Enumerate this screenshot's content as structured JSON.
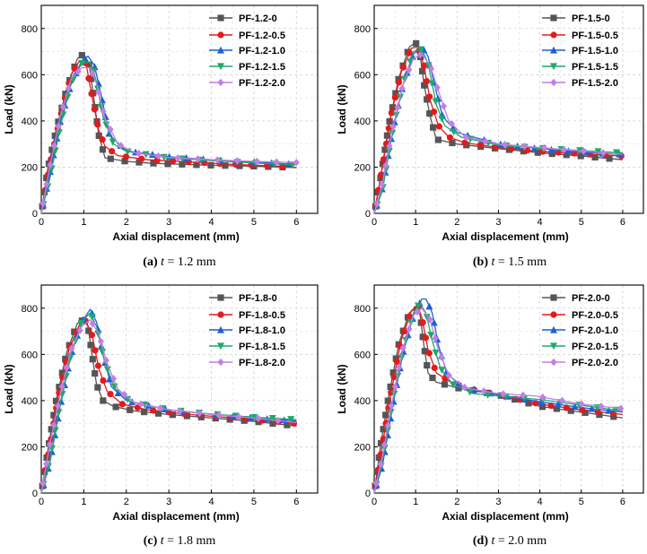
{
  "colors": {
    "series": [
      "#555555",
      "#e41a1c",
      "#1f5fd6",
      "#1ea86a",
      "#c27fe6"
    ],
    "markers": [
      "square",
      "circle",
      "triangle-up",
      "triangle-down",
      "diamond"
    ]
  },
  "chart_data": [
    {
      "type": "line",
      "caption_prefix": "(a)",
      "caption_rest": " = 1.2 mm",
      "caption_var": "t",
      "xlabel": "Axial displacement (mm)",
      "ylabel": "Load (kN)",
      "xlim": [
        0,
        6.5
      ],
      "ylim": [
        0,
        900
      ],
      "xticks": [
        0,
        1,
        2,
        3,
        4,
        5,
        6
      ],
      "yticks": [
        0,
        200,
        400,
        600,
        800
      ],
      "grid": "dashed",
      "legend": "top-right",
      "series": [
        {
          "name": "PF-1.2-0",
          "x": [
            0,
            0.15,
            0.35,
            0.6,
            0.85,
            1.0,
            1.12,
            1.25,
            1.35,
            1.5,
            2.0,
            2.5,
            3.0,
            4.0,
            5.0,
            6.0
          ],
          "y": [
            0,
            190,
            360,
            540,
            670,
            690,
            650,
            480,
            340,
            240,
            225,
            218,
            214,
            208,
            204,
            198
          ]
        },
        {
          "name": "PF-1.2-0.5",
          "x": [
            0,
            0.2,
            0.45,
            0.7,
            0.9,
            1.05,
            1.2,
            1.35,
            1.5,
            1.8,
            2.5,
            3.5,
            4.5,
            5.5,
            6.0
          ],
          "y": [
            0,
            210,
            420,
            600,
            660,
            650,
            500,
            360,
            290,
            250,
            232,
            222,
            212,
            205,
            198
          ]
        },
        {
          "name": "PF-1.2-1.0",
          "x": [
            0,
            0.2,
            0.45,
            0.7,
            0.95,
            1.1,
            1.25,
            1.4,
            1.6,
            2.0,
            3.0,
            4.0,
            5.0,
            6.0
          ],
          "y": [
            0,
            170,
            400,
            560,
            660,
            680,
            640,
            520,
            340,
            270,
            245,
            232,
            222,
            212
          ]
        },
        {
          "name": "PF-1.2-1.5",
          "x": [
            0,
            0.2,
            0.45,
            0.7,
            0.95,
            1.15,
            1.3,
            1.45,
            1.7,
            2.0,
            3.0,
            4.0,
            5.0,
            6.0
          ],
          "y": [
            0,
            150,
            380,
            560,
            650,
            655,
            570,
            420,
            300,
            268,
            240,
            228,
            218,
            210
          ]
        },
        {
          "name": "PF-1.2-2.0",
          "x": [
            0,
            0.2,
            0.45,
            0.7,
            0.95,
            1.15,
            1.3,
            1.5,
            1.8,
            2.2,
            3.0,
            4.0,
            5.0,
            6.0
          ],
          "y": [
            0,
            200,
            420,
            580,
            630,
            630,
            560,
            410,
            300,
            262,
            242,
            232,
            225,
            220
          ]
        }
      ]
    },
    {
      "type": "line",
      "caption_prefix": "(b)",
      "caption_rest": " = 1.5 mm",
      "caption_var": "t",
      "xlabel": "Axial displacement (mm)",
      "ylabel": "Load (kN)",
      "xlim": [
        0,
        6.5
      ],
      "ylim": [
        0,
        900
      ],
      "xticks": [
        0,
        1,
        2,
        3,
        4,
        5,
        6
      ],
      "yticks": [
        0,
        200,
        400,
        600,
        800
      ],
      "grid": "dashed",
      "legend": "top-right",
      "series": [
        {
          "name": "PF-1.5-0",
          "x": [
            0,
            0.15,
            0.35,
            0.6,
            0.85,
            1.0,
            1.1,
            1.2,
            1.35,
            1.5,
            2.0,
            3.0,
            4.0,
            5.0,
            6.0
          ],
          "y": [
            0,
            150,
            380,
            590,
            720,
            740,
            700,
            560,
            420,
            320,
            300,
            280,
            262,
            248,
            232
          ]
        },
        {
          "name": "PF-1.5-0.5",
          "x": [
            0,
            0.2,
            0.4,
            0.65,
            0.9,
            1.05,
            1.2,
            1.35,
            1.55,
            1.8,
            2.2,
            3.0,
            4.0,
            5.0,
            6.0
          ],
          "y": [
            0,
            200,
            420,
            610,
            715,
            720,
            640,
            490,
            380,
            330,
            305,
            285,
            268,
            258,
            248
          ]
        },
        {
          "name": "PF-1.5-1.0",
          "x": [
            0,
            0.2,
            0.45,
            0.7,
            0.95,
            1.15,
            1.3,
            1.45,
            1.65,
            2.0,
            3.0,
            4.0,
            5.0,
            6.0
          ],
          "y": [
            0,
            110,
            360,
            560,
            690,
            720,
            680,
            560,
            420,
            350,
            300,
            280,
            265,
            255
          ]
        },
        {
          "name": "PF-1.5-1.5",
          "x": [
            0,
            0.2,
            0.45,
            0.7,
            0.95,
            1.15,
            1.3,
            1.5,
            1.7,
            2.1,
            3.0,
            4.0,
            5.0,
            6.0
          ],
          "y": [
            0,
            100,
            360,
            560,
            700,
            710,
            650,
            470,
            380,
            330,
            295,
            282,
            272,
            262
          ]
        },
        {
          "name": "PF-1.5-2.0",
          "x": [
            0,
            0.2,
            0.45,
            0.7,
            0.95,
            1.15,
            1.35,
            1.55,
            1.8,
            2.2,
            3.0,
            4.0,
            5.0,
            6.0
          ],
          "y": [
            0,
            130,
            370,
            560,
            670,
            690,
            640,
            530,
            400,
            330,
            300,
            285,
            270,
            255
          ]
        }
      ]
    },
    {
      "type": "line",
      "caption_prefix": "(c)",
      "caption_rest": " = 1.8 mm",
      "caption_var": "t",
      "xlabel": "Axial displacement (mm)",
      "ylabel": "Load (kN)",
      "xlim": [
        0,
        6.5
      ],
      "ylim": [
        0,
        900
      ],
      "xticks": [
        0,
        1,
        2,
        3,
        4,
        5,
        6
      ],
      "yticks": [
        0,
        200,
        400,
        600,
        800
      ],
      "grid": "dashed",
      "legend": "top-right",
      "series": [
        {
          "name": "PF-1.8-0",
          "x": [
            0,
            0.15,
            0.35,
            0.6,
            0.85,
            1.0,
            1.1,
            1.2,
            1.3,
            1.45,
            1.7,
            2.2,
            3.0,
            4.0,
            5.0,
            6.0
          ],
          "y": [
            0,
            180,
            400,
            610,
            735,
            750,
            720,
            590,
            470,
            400,
            375,
            355,
            340,
            325,
            310,
            290
          ]
        },
        {
          "name": "PF-1.8-0.5",
          "x": [
            0,
            0.2,
            0.4,
            0.65,
            0.9,
            1.05,
            1.2,
            1.35,
            1.55,
            1.9,
            2.5,
            3.5,
            4.5,
            5.5,
            6.0
          ],
          "y": [
            0,
            200,
            420,
            620,
            730,
            745,
            680,
            540,
            440,
            385,
            360,
            340,
            325,
            310,
            300
          ]
        },
        {
          "name": "PF-1.8-1.0",
          "x": [
            0,
            0.2,
            0.45,
            0.7,
            0.95,
            1.15,
            1.3,
            1.45,
            1.65,
            2.0,
            3.0,
            4.0,
            5.0,
            6.0
          ],
          "y": [
            0,
            130,
            380,
            600,
            740,
            795,
            740,
            600,
            460,
            400,
            360,
            340,
            325,
            312
          ]
        },
        {
          "name": "PF-1.8-1.5",
          "x": [
            0,
            0.2,
            0.45,
            0.7,
            0.95,
            1.15,
            1.3,
            1.5,
            1.75,
            2.1,
            3.0,
            4.0,
            5.0,
            6.0
          ],
          "y": [
            0,
            140,
            390,
            600,
            740,
            780,
            720,
            560,
            450,
            395,
            360,
            342,
            328,
            318
          ]
        },
        {
          "name": "PF-1.8-2.0",
          "x": [
            0,
            0.2,
            0.45,
            0.7,
            0.95,
            1.15,
            1.35,
            1.55,
            1.8,
            2.2,
            3.0,
            4.0,
            5.0,
            6.0
          ],
          "y": [
            0,
            210,
            430,
            620,
            720,
            750,
            690,
            560,
            450,
            390,
            360,
            340,
            325,
            305
          ]
        }
      ]
    },
    {
      "type": "line",
      "caption_prefix": "(d)",
      "caption_rest": " = 2.0 mm",
      "caption_var": "t",
      "xlabel": "Axial displacement (mm)",
      "ylabel": "Load (kN)",
      "xlim": [
        0,
        6.5
      ],
      "ylim": [
        0,
        900
      ],
      "xticks": [
        0,
        1,
        2,
        3,
        4,
        5,
        6
      ],
      "yticks": [
        0,
        200,
        400,
        600,
        800
      ],
      "grid": "dashed",
      "legend": "top-right",
      "series": [
        {
          "name": "PF-2.0-0",
          "x": [
            0,
            0.15,
            0.35,
            0.6,
            0.85,
            1.0,
            1.1,
            1.2,
            1.3,
            1.5,
            2.0,
            3.0,
            4.0,
            5.0,
            6.0
          ],
          "y": [
            0,
            200,
            420,
            650,
            780,
            800,
            780,
            640,
            520,
            480,
            455,
            425,
            375,
            350,
            325
          ]
        },
        {
          "name": "PF-2.0-0.5",
          "x": [
            0,
            0.2,
            0.4,
            0.65,
            0.9,
            1.05,
            1.15,
            1.3,
            1.5,
            1.8,
            2.2,
            3.0,
            4.0,
            5.0,
            6.0
          ],
          "y": [
            0,
            210,
            430,
            660,
            790,
            810,
            760,
            620,
            520,
            485,
            455,
            425,
            385,
            360,
            340
          ]
        },
        {
          "name": "PF-2.0-1.0",
          "x": [
            0,
            0.2,
            0.45,
            0.7,
            0.95,
            1.15,
            1.25,
            1.4,
            1.55,
            1.75,
            2.1,
            3.0,
            4.0,
            5.0,
            6.0
          ],
          "y": [
            0,
            120,
            380,
            610,
            770,
            840,
            840,
            780,
            640,
            520,
            460,
            425,
            395,
            370,
            350
          ]
        },
        {
          "name": "PF-2.0-1.5",
          "x": [
            0,
            0.2,
            0.45,
            0.7,
            0.95,
            1.1,
            1.25,
            1.4,
            1.6,
            1.9,
            2.4,
            3.0,
            4.0,
            5.0,
            6.0
          ],
          "y": [
            0,
            140,
            400,
            620,
            780,
            820,
            780,
            660,
            540,
            470,
            430,
            420,
            405,
            380,
            355
          ]
        },
        {
          "name": "PF-2.0-2.0",
          "x": [
            0,
            0.2,
            0.45,
            0.7,
            0.95,
            1.15,
            1.35,
            1.55,
            1.8,
            2.2,
            3.0,
            3.9,
            5.0,
            6.0
          ],
          "y": [
            0,
            160,
            410,
            630,
            770,
            800,
            750,
            620,
            510,
            455,
            430,
            420,
            385,
            365
          ]
        }
      ]
    }
  ]
}
